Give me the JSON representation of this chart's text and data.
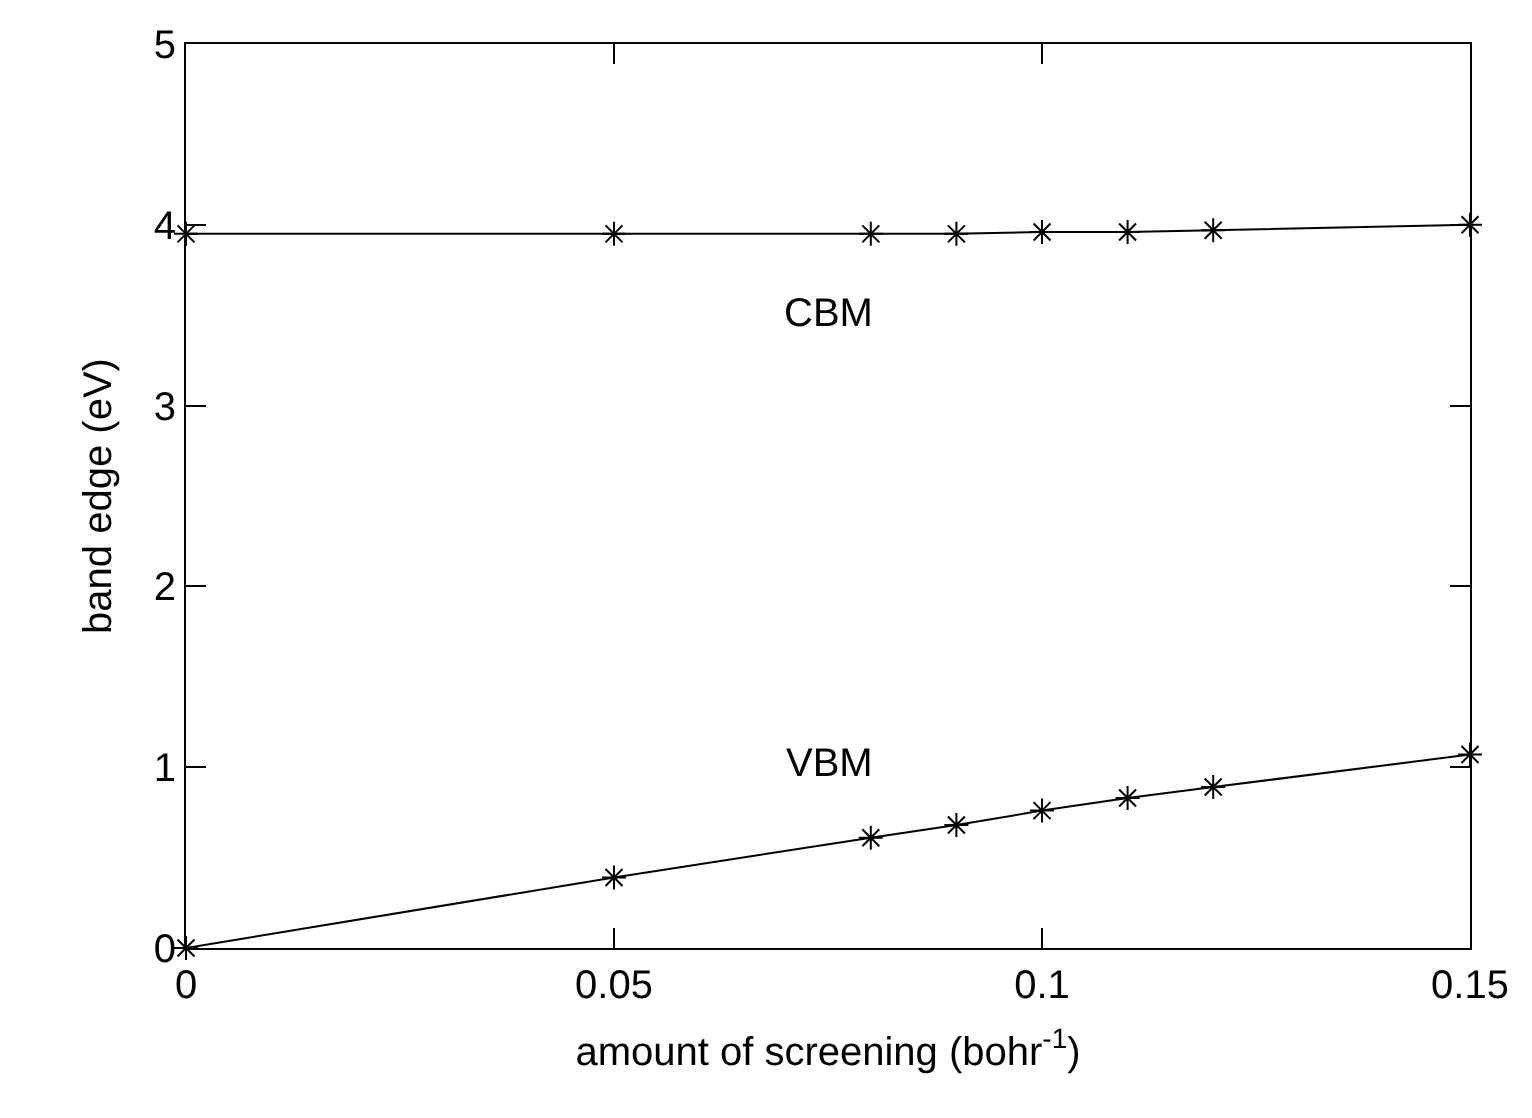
{
  "chart_data": {
    "type": "line",
    "xlabel": "amount of screening (bohr$^{-1}$)",
    "ylabel": "band edge (eV)",
    "x": [
      0,
      0.05,
      0.08,
      0.09,
      0.1,
      0.11,
      0.12,
      0.15
    ],
    "series": [
      {
        "name": "CBM",
        "color": "#000000",
        "values": [
          3.95,
          3.95,
          3.95,
          3.95,
          3.96,
          3.96,
          3.97,
          4.0
        ]
      },
      {
        "name": "VBM",
        "color": "#000000",
        "values": [
          0,
          0.39,
          0.61,
          0.68,
          0.76,
          0.83,
          0.89,
          1.07
        ]
      }
    ],
    "xlim": [
      0,
      0.15
    ],
    "xticks": [
      0,
      0.05,
      {
        "value": 0.1,
        "label": "0.1"
      },
      0.15
    ],
    "ylim": [
      0,
      5
    ],
    "yticks": [
      0,
      1,
      2,
      3,
      4,
      5
    ],
    "legend": false,
    "marker": "cross",
    "line_style": "solid"
  }
}
